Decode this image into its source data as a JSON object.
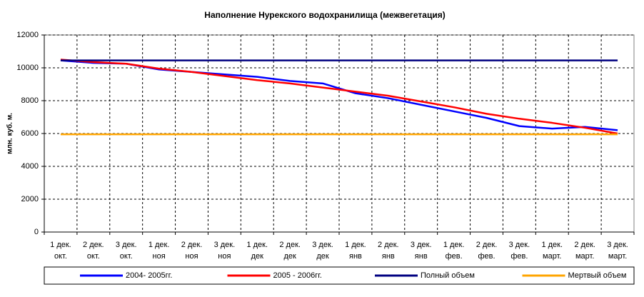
{
  "chart_data": {
    "type": "line",
    "title": "Наполнение Нурекского водохранилища (межвегетация)",
    "y_label": "млн. куб. м.",
    "categories": [
      "1 дек.\nокт.",
      "2 дек.\nокт.",
      "3 дек.\nокт.",
      "1 дек.\nноя",
      "2 дек.\nноя",
      "3 дек.\nноя",
      "1 дек.\nдек",
      "2 дек.\nдек",
      "3 дек.\nдек",
      "1 дек.\nянв",
      "2 дек.\nянв",
      "3 дек.\nянв",
      "1 дек.\nфев.",
      "2 дек.\nфев.",
      "3 дек.\nфев.",
      "1 дек.\nмарт.",
      "2 дек.\nмарт.",
      "3 дек.\nмарт."
    ],
    "series": [
      {
        "name": "2004- 2005гг.",
        "color": "#0000ff",
        "values": [
          10450,
          10300,
          10250,
          9900,
          9750,
          9600,
          9450,
          9200,
          9050,
          8450,
          8150,
          7750,
          7350,
          6950,
          6450,
          6300,
          6400,
          6200
        ]
      },
      {
        "name": "2005 - 2006гг.",
        "color": "#ff0000",
        "values": [
          10500,
          10350,
          10250,
          9950,
          9750,
          9500,
          9250,
          9050,
          8800,
          8550,
          8300,
          7950,
          7600,
          7200,
          6900,
          6650,
          6350,
          6000
        ]
      },
      {
        "name": "Полный объем",
        "color": "#000080",
        "values": [
          10450,
          10450,
          10450,
          10450,
          10450,
          10450,
          10450,
          10450,
          10450,
          10450,
          10450,
          10450,
          10450,
          10450,
          10450,
          10450,
          10450,
          10450
        ]
      },
      {
        "name": "Мертвый объем",
        "color": "#ffa500",
        "values": [
          5950,
          5950,
          5950,
          5950,
          5950,
          5950,
          5950,
          5950,
          5950,
          5950,
          5950,
          5950,
          5950,
          5950,
          5950,
          5950,
          5950,
          5950
        ]
      }
    ],
    "ylim": [
      0,
      12000
    ],
    "yticks": [
      0,
      2000,
      4000,
      6000,
      8000,
      10000,
      12000
    ],
    "grid": true
  }
}
